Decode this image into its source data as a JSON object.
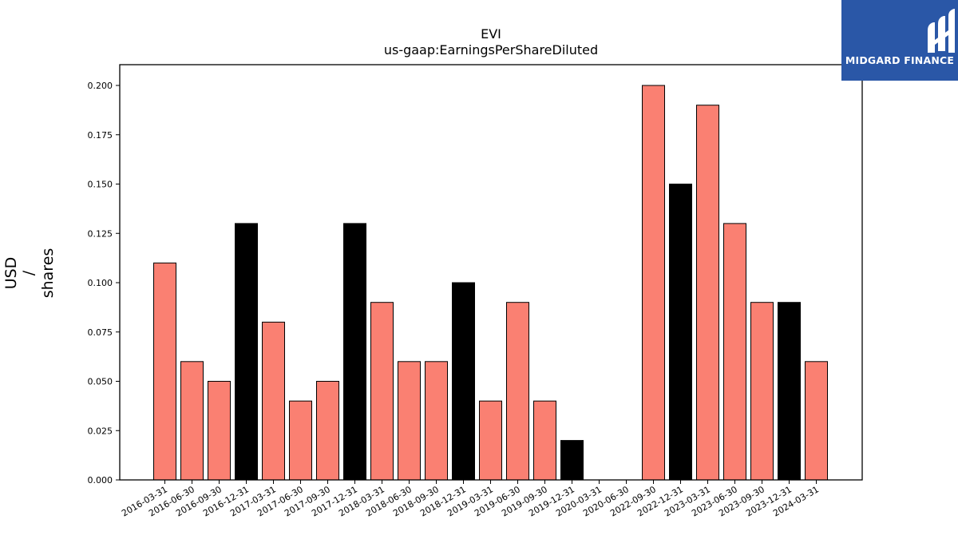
{
  "logo": {
    "brand": "MIDGARD FINANCE",
    "icon": "midgard-logo-icon"
  },
  "chart_data": {
    "type": "bar",
    "title": "EVI",
    "subtitle": "us-gaap:EarningsPerShareDiluted",
    "ylabel_lines": [
      "USD",
      "/",
      "shares"
    ],
    "xlabel": "",
    "ylim": [
      0,
      0.21
    ],
    "yticks": [
      "0.000",
      "0.025",
      "0.050",
      "0.075",
      "0.100",
      "0.125",
      "0.150",
      "0.175",
      "0.200"
    ],
    "grid": false,
    "legend": "none",
    "colors": {
      "quarter": "#fa8072",
      "year_end": "#000000"
    },
    "categories": [
      "2016-03-31",
      "2016-06-30",
      "2016-09-30",
      "2016-12-31",
      "2017-03-31",
      "2017-06-30",
      "2017-09-30",
      "2017-12-31",
      "2018-03-31",
      "2018-06-30",
      "2018-09-30",
      "2018-12-31",
      "2019-03-31",
      "2019-06-30",
      "2019-09-30",
      "2019-12-31",
      "2020-03-31",
      "2020-06-30",
      "2022-09-30",
      "2022-12-31",
      "2023-03-31",
      "2023-06-30",
      "2023-09-30",
      "2023-12-31",
      "2024-03-31"
    ],
    "values": [
      0.11,
      0.06,
      0.05,
      0.13,
      0.08,
      0.04,
      0.05,
      0.13,
      0.09,
      0.06,
      0.06,
      0.1,
      0.04,
      0.09,
      0.04,
      0.02,
      0,
      0,
      0.2,
      0.15,
      0.19,
      0.13,
      0.09,
      0.09,
      0.06
    ]
  }
}
